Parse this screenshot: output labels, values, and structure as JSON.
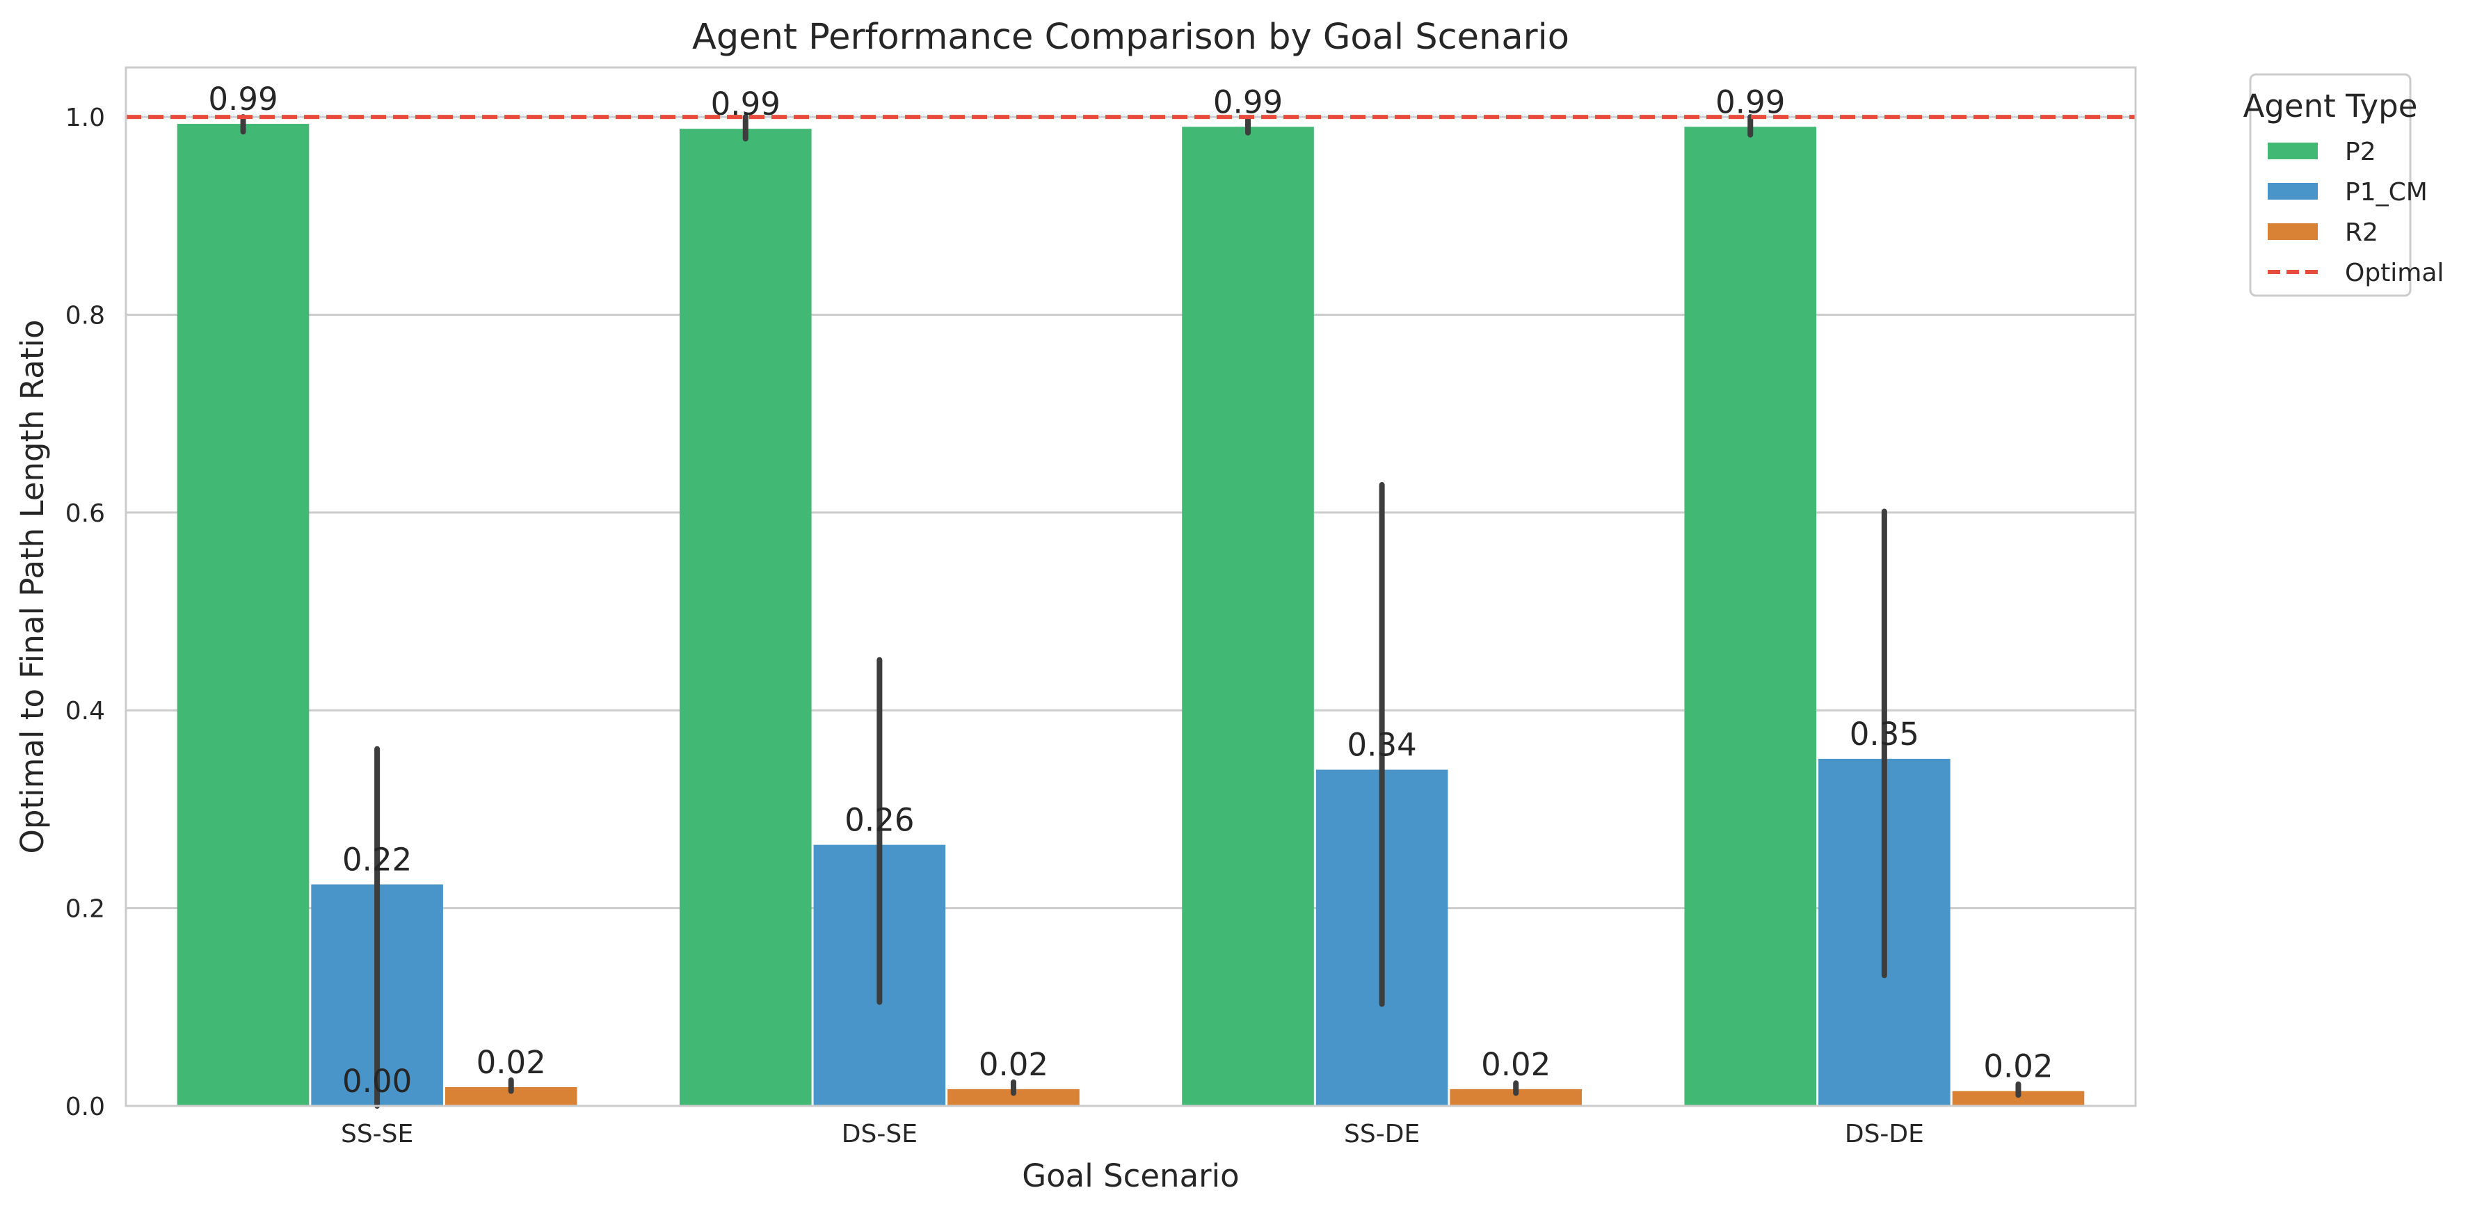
{
  "chart_data": {
    "type": "bar",
    "title": "Agent Performance Comparison by Goal Scenario",
    "xlabel": "Goal Scenario",
    "ylabel": "Optimal to Final Path Length Ratio",
    "categories": [
      "SS-SE",
      "DS-SE",
      "SS-DE",
      "DS-DE"
    ],
    "ylim": [
      0,
      1.05
    ],
    "yticks": [
      "0.0",
      "0.2",
      "0.4",
      "0.6",
      "0.8",
      "1.0"
    ],
    "grid": "horizontal",
    "series": [
      {
        "name": "P2",
        "color": "#41b874",
        "values": [
          0.993,
          0.988,
          0.99,
          0.99
        ],
        "error_low": [
          0.985,
          0.978,
          0.984,
          0.982
        ],
        "error_high": [
          1.0,
          1.0,
          0.997,
          1.0
        ],
        "labels": [
          "0.99",
          "0.99",
          "0.99",
          "0.99"
        ]
      },
      {
        "name": "P1_CM",
        "color": "#4995c9",
        "values": [
          0.224,
          0.264,
          0.34,
          0.351
        ],
        "error_low": [
          0.0,
          0.105,
          0.103,
          0.132
        ],
        "error_high": [
          0.361,
          0.451,
          0.628,
          0.601
        ],
        "labels": [
          "0.22",
          "0.26",
          "0.34",
          "0.35"
        ],
        "extra_label": {
          "category": "SS-SE",
          "text": "0.00",
          "value": 0.0
        }
      },
      {
        "name": "R2",
        "color": "#d98134",
        "values": [
          0.019,
          0.017,
          0.017,
          0.015
        ],
        "error_low": [
          0.015,
          0.013,
          0.013,
          0.011
        ],
        "error_high": [
          0.026,
          0.024,
          0.023,
          0.022
        ],
        "labels": [
          "0.02",
          "0.02",
          "0.02",
          "0.02"
        ]
      }
    ],
    "reference_line": {
      "name": "Optimal",
      "value": 1.0,
      "color": "#e74c3c",
      "style": "dashed"
    },
    "legend": {
      "title": "Agent Type",
      "placement": "outside-top-right"
    }
  }
}
